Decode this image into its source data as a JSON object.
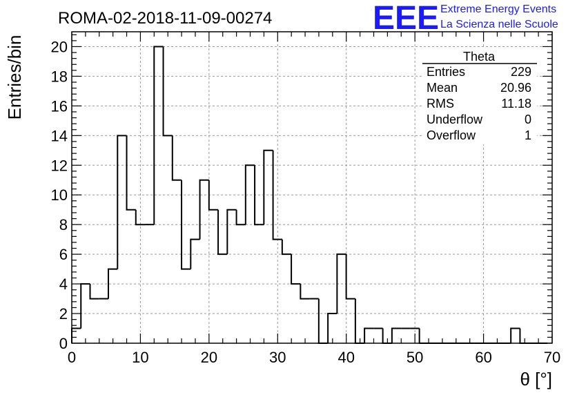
{
  "chart_data": {
    "type": "bar",
    "title": "ROMA-02-2018-11-09-00274",
    "xlabel": "θ [°]",
    "ylabel": "Entries/bin",
    "xlim": [
      0,
      70
    ],
    "ylim": [
      0,
      21
    ],
    "x_ticks": [
      0,
      10,
      20,
      30,
      40,
      50,
      60,
      70
    ],
    "y_ticks": [
      0,
      2,
      4,
      6,
      8,
      10,
      12,
      14,
      16,
      18,
      20
    ],
    "grid": true,
    "bin_width": 1.333,
    "bin_edges_start": 0,
    "values": [
      1,
      4,
      3,
      3,
      5,
      14,
      9,
      8,
      8,
      20,
      14,
      11,
      5,
      7,
      11,
      9,
      6,
      9,
      8,
      12,
      8,
      13,
      7,
      6,
      4,
      3,
      3,
      0,
      2,
      6,
      3,
      0,
      1,
      1,
      0,
      1,
      1,
      1,
      0,
      0,
      0,
      0,
      0,
      0,
      0,
      0,
      0,
      0,
      1,
      0,
      0,
      0
    ]
  },
  "stats_box": {
    "name": "Theta",
    "rows": [
      {
        "label": "Entries",
        "value": "229"
      },
      {
        "label": "Mean",
        "value": "20.96"
      },
      {
        "label": "RMS",
        "value": "11.18"
      },
      {
        "label": "Underflow",
        "value": "0"
      },
      {
        "label": "Overflow",
        "value": "1"
      }
    ]
  },
  "logo": {
    "mark": "EEE",
    "line1": "Extreme Energy Events",
    "line2": "La Scienza nelle Scuole",
    "color": "#1a1aff"
  }
}
